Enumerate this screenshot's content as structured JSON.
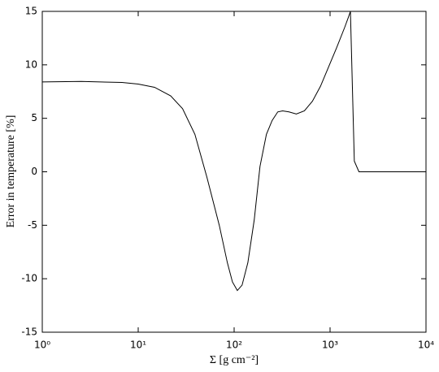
{
  "chart_data": {
    "type": "line",
    "x_label": "Σ [g cm⁻²]",
    "y_label": "Error in temperature [%]",
    "x": [
      1,
      2.55,
      6.77,
      10,
      14.8,
      21.8,
      29,
      39,
      52,
      70,
      85,
      96,
      108,
      121,
      139,
      162,
      186,
      217,
      249,
      285,
      320,
      373,
      445,
      540,
      655,
      795,
      965,
      1170,
      1420,
      1560,
      1630,
      1790,
      2000,
      10000
    ],
    "values": [
      8.4,
      8.45,
      8.35,
      8.2,
      7.9,
      7.1,
      5.9,
      3.5,
      -0.5,
      -5,
      -8.5,
      -10.3,
      -11.1,
      -10.6,
      -8.5,
      -4.5,
      0.5,
      3.5,
      4.8,
      5.6,
      5.7,
      5.6,
      5.4,
      5.7,
      6.6,
      8,
      9.8,
      11.6,
      13.5,
      14.5,
      15,
      1,
      0,
      0
    ],
    "color": "#000000",
    "xscale": "log",
    "xlim": [
      1,
      10000
    ],
    "xticks": [
      {
        "value": 1,
        "label": "10⁰"
      },
      {
        "value": 10,
        "label": "10¹"
      },
      {
        "value": 100,
        "label": "10²"
      },
      {
        "value": 1000,
        "label": "10³"
      },
      {
        "value": 10000,
        "label": "10⁴"
      }
    ],
    "ylim": [
      -15,
      15
    ],
    "yticks": [
      -15,
      -10,
      -5,
      0,
      5,
      10,
      15
    ]
  }
}
